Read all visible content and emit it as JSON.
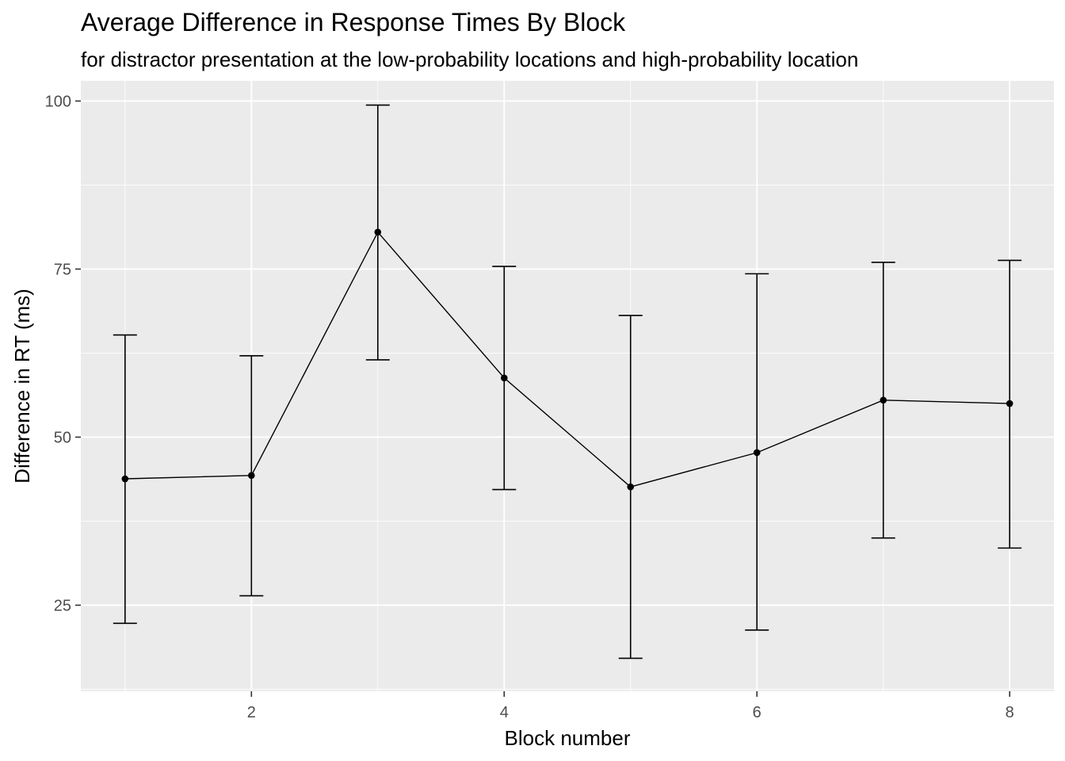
{
  "chart_data": {
    "type": "line",
    "title": "Average Difference in Response Times By Block",
    "subtitle": "for distractor presentation at the low-probability locations and high-probability location",
    "xlabel": "Block number",
    "ylabel": "Difference in RT (ms)",
    "xlim": [
      0.65,
      8.35
    ],
    "ylim": [
      12.2,
      103.0
    ],
    "x_ticks": [
      2,
      4,
      6,
      8
    ],
    "y_ticks": [
      25,
      50,
      75,
      100
    ],
    "grid": true,
    "background": "#EBEBEB",
    "grid_color": "#FFFFFF",
    "line_color": "#000000",
    "series": [
      {
        "x": [
          1,
          2,
          3,
          4,
          5,
          6,
          7,
          8
        ],
        "y": [
          43.8,
          44.3,
          80.5,
          58.8,
          42.6,
          47.7,
          55.5,
          55.0
        ],
        "ymin": [
          22.3,
          26.4,
          61.5,
          42.2,
          17.1,
          21.3,
          35.0,
          33.5
        ],
        "ymax": [
          65.2,
          62.1,
          99.4,
          75.4,
          68.1,
          74.3,
          76.0,
          76.3
        ]
      }
    ]
  }
}
